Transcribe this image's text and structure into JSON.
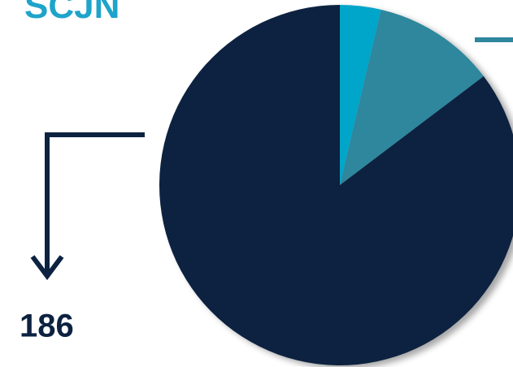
{
  "chart_data": {
    "type": "pie",
    "title": "SCJN",
    "categories": [
      null,
      null,
      null
    ],
    "values": [
      8,
      24,
      186
    ],
    "colors": [
      "#00a6c9",
      "#2e879d",
      "#0c2240"
    ]
  }
}
